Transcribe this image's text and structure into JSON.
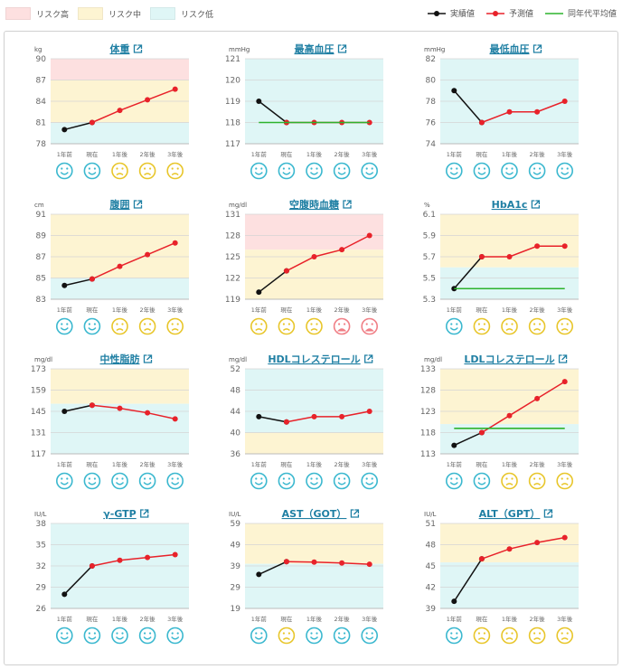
{
  "legend": {
    "risk_high": "リスク高",
    "risk_mid": "リスク中",
    "risk_low": "リスク低",
    "actual": "実績値",
    "predicted": "予測値",
    "peer_average": "同年代平均値"
  },
  "colors": {
    "risk_high": "#fde0e0",
    "risk_mid": "#fdf4d2",
    "risk_low": "#dff6f6",
    "actual": "#111111",
    "predicted": "#e8222a",
    "peer_average": "#2db32d",
    "face_good": "#3bb8cf",
    "face_mid": "#e8c62b",
    "face_bad": "#f07f86",
    "title": "#1f7fa3"
  },
  "chart_data": [
    {
      "type": "line",
      "title": "体重",
      "unit": "kg",
      "categories": [
        "1年前",
        "現在",
        "1年後",
        "2年後",
        "3年後"
      ],
      "ylim": [
        78,
        90
      ],
      "yticks": [
        78,
        81,
        84,
        87,
        90
      ],
      "bands": {
        "high": [
          87,
          90
        ],
        "mid": [
          81,
          87
        ],
        "low": [
          78,
          81
        ]
      },
      "series": [
        {
          "name": "実績値",
          "values": [
            80,
            81,
            null,
            null,
            null
          ]
        },
        {
          "name": "予測値",
          "values": [
            null,
            81,
            82.7,
            84.2,
            85.7
          ]
        }
      ],
      "faces": [
        "good",
        "good",
        "mid",
        "mid",
        "mid"
      ]
    },
    {
      "type": "line",
      "title": "最高血圧",
      "unit": "mmHg",
      "categories": [
        "1年前",
        "現在",
        "1年後",
        "2年後",
        "3年後"
      ],
      "ylim": [
        117,
        121
      ],
      "yticks": [
        117,
        118,
        119,
        120,
        121
      ],
      "bands": {
        "low": [
          117,
          121
        ]
      },
      "series": [
        {
          "name": "実績値",
          "values": [
            119,
            118,
            null,
            null,
            null
          ]
        },
        {
          "name": "予測値",
          "values": [
            null,
            118,
            118,
            118,
            118
          ]
        },
        {
          "name": "同年代平均値",
          "values": [
            118,
            118,
            118,
            118,
            118
          ]
        }
      ],
      "faces": [
        "good",
        "good",
        "good",
        "good",
        "good"
      ]
    },
    {
      "type": "line",
      "title": "最低血圧",
      "unit": "mmHg",
      "categories": [
        "1年前",
        "現在",
        "1年後",
        "2年後",
        "3年後"
      ],
      "ylim": [
        74,
        82
      ],
      "yticks": [
        74,
        76,
        78,
        80,
        82
      ],
      "bands": {
        "low": [
          74,
          82
        ]
      },
      "series": [
        {
          "name": "実績値",
          "values": [
            79,
            76,
            null,
            null,
            null
          ]
        },
        {
          "name": "予測値",
          "values": [
            null,
            76,
            77,
            77,
            78
          ]
        }
      ],
      "faces": [
        "good",
        "good",
        "good",
        "good",
        "good"
      ]
    },
    {
      "type": "line",
      "title": "腹囲",
      "unit": "cm",
      "categories": [
        "1年前",
        "現在",
        "1年後",
        "2年後",
        "3年後"
      ],
      "ylim": [
        83,
        91
      ],
      "yticks": [
        83,
        85,
        87,
        89,
        91
      ],
      "bands": {
        "mid": [
          85,
          91
        ],
        "low": [
          83,
          85
        ]
      },
      "series": [
        {
          "name": "実績値",
          "values": [
            84.3,
            84.9,
            null,
            null,
            null
          ]
        },
        {
          "name": "予測値",
          "values": [
            null,
            84.9,
            86.1,
            87.2,
            88.3
          ]
        }
      ],
      "faces": [
        "good",
        "good",
        "mid",
        "mid",
        "mid"
      ]
    },
    {
      "type": "line",
      "title": "空腹時血糖",
      "unit": "mg/dl",
      "categories": [
        "1年前",
        "現在",
        "1年後",
        "2年後",
        "3年後"
      ],
      "ylim": [
        119,
        131
      ],
      "yticks": [
        119,
        122,
        125,
        128,
        131
      ],
      "bands": {
        "high": [
          126,
          131
        ],
        "mid": [
          119,
          126
        ]
      },
      "series": [
        {
          "name": "実績値",
          "values": [
            120,
            123,
            null,
            null,
            null
          ]
        },
        {
          "name": "予測値",
          "values": [
            null,
            123,
            125,
            126,
            128
          ]
        }
      ],
      "faces": [
        "mid",
        "mid",
        "mid",
        "bad",
        "bad"
      ]
    },
    {
      "type": "line",
      "title": "HbA1c",
      "unit": "%",
      "categories": [
        "1年前",
        "現在",
        "1年後",
        "2年後",
        "3年後"
      ],
      "ylim": [
        5.3,
        6.1
      ],
      "yticks": [
        5.3,
        5.5,
        5.7,
        5.9,
        6.1
      ],
      "bands": {
        "mid": [
          5.6,
          6.1
        ],
        "low": [
          5.3,
          5.6
        ]
      },
      "series": [
        {
          "name": "実績値",
          "values": [
            5.4,
            5.7,
            null,
            null,
            null
          ]
        },
        {
          "name": "予測値",
          "values": [
            null,
            5.7,
            5.7,
            5.8,
            5.8
          ]
        },
        {
          "name": "同年代平均値",
          "values": [
            5.4,
            5.4,
            5.4,
            5.4,
            5.4
          ]
        }
      ],
      "faces": [
        "good",
        "mid",
        "mid",
        "mid",
        "mid"
      ]
    },
    {
      "type": "line",
      "title": "中性脂肪",
      "unit": "mg/dl",
      "categories": [
        "1年前",
        "現在",
        "1年後",
        "2年後",
        "3年後"
      ],
      "ylim": [
        117,
        173
      ],
      "yticks": [
        117,
        131,
        145,
        159,
        173
      ],
      "bands": {
        "mid": [
          150,
          173
        ],
        "low": [
          117,
          150
        ]
      },
      "series": [
        {
          "name": "実績値",
          "values": [
            145,
            149,
            null,
            null,
            null
          ]
        },
        {
          "name": "予測値",
          "values": [
            null,
            149,
            147,
            144,
            140
          ]
        }
      ],
      "faces": [
        "good",
        "good",
        "good",
        "good",
        "good"
      ]
    },
    {
      "type": "line",
      "title": "HDLコレステロール",
      "unit": "mg/dl",
      "categories": [
        "1年前",
        "現在",
        "1年後",
        "2年後",
        "3年後"
      ],
      "ylim": [
        36,
        52
      ],
      "yticks": [
        36,
        40,
        44,
        48,
        52
      ],
      "bands": {
        "low": [
          40,
          52
        ],
        "mid": [
          36,
          40
        ]
      },
      "series": [
        {
          "name": "実績値",
          "values": [
            43,
            42,
            null,
            null,
            null
          ]
        },
        {
          "name": "予測値",
          "values": [
            null,
            42,
            43,
            43,
            44
          ]
        }
      ],
      "faces": [
        "good",
        "good",
        "good",
        "good",
        "good"
      ]
    },
    {
      "type": "line",
      "title": "LDLコレステロール",
      "unit": "mg/dl",
      "categories": [
        "1年前",
        "現在",
        "1年後",
        "2年後",
        "3年後"
      ],
      "ylim": [
        113,
        133
      ],
      "yticks": [
        113,
        118,
        123,
        128,
        133
      ],
      "bands": {
        "mid": [
          120,
          133
        ],
        "low": [
          113,
          120
        ]
      },
      "series": [
        {
          "name": "実績値",
          "values": [
            115,
            118,
            null,
            null,
            null
          ]
        },
        {
          "name": "予測値",
          "values": [
            null,
            118,
            122,
            126,
            130
          ]
        },
        {
          "name": "同年代平均値",
          "values": [
            119,
            119,
            119,
            119,
            119
          ]
        }
      ],
      "faces": [
        "good",
        "good",
        "mid",
        "mid",
        "mid"
      ]
    },
    {
      "type": "line",
      "title": "γ-GTP",
      "unit": "IU/L",
      "categories": [
        "1年前",
        "現在",
        "1年後",
        "2年後",
        "3年後"
      ],
      "ylim": [
        26,
        38
      ],
      "yticks": [
        26,
        29,
        32,
        35,
        38
      ],
      "bands": {
        "low": [
          26,
          38
        ]
      },
      "series": [
        {
          "name": "実績値",
          "values": [
            28,
            32,
            null,
            null,
            null
          ]
        },
        {
          "name": "予測値",
          "values": [
            null,
            32,
            32.8,
            33.2,
            33.6
          ]
        }
      ],
      "faces": [
        "good",
        "good",
        "good",
        "good",
        "good"
      ]
    },
    {
      "type": "line",
      "title": "AST（GOT）",
      "unit": "IU/L",
      "categories": [
        "1年前",
        "現在",
        "1年後",
        "2年後",
        "3年後"
      ],
      "ylim": [
        19,
        59
      ],
      "yticks": [
        19,
        29,
        39,
        49,
        59
      ],
      "bands": {
        "mid": [
          40,
          59
        ],
        "low": [
          19,
          40
        ]
      },
      "series": [
        {
          "name": "実績値",
          "values": [
            35,
            41,
            null,
            null,
            null
          ]
        },
        {
          "name": "予測値",
          "values": [
            null,
            41,
            40.8,
            40.4,
            39.8
          ]
        }
      ],
      "faces": [
        "good",
        "mid",
        "good",
        "good",
        "good"
      ]
    },
    {
      "type": "line",
      "title": "ALT（GPT）",
      "unit": "IU/L",
      "categories": [
        "1年前",
        "現在",
        "1年後",
        "2年後",
        "3年後"
      ],
      "ylim": [
        39,
        51
      ],
      "yticks": [
        39,
        42,
        45,
        48,
        51
      ],
      "bands": {
        "mid": [
          45.5,
          51
        ],
        "low": [
          39,
          45.5
        ]
      },
      "series": [
        {
          "name": "実績値",
          "values": [
            40,
            46,
            null,
            null,
            null
          ]
        },
        {
          "name": "予測値",
          "values": [
            null,
            46,
            47.4,
            48.3,
            49
          ]
        }
      ],
      "faces": [
        "good",
        "mid",
        "mid",
        "mid",
        "mid"
      ]
    }
  ]
}
